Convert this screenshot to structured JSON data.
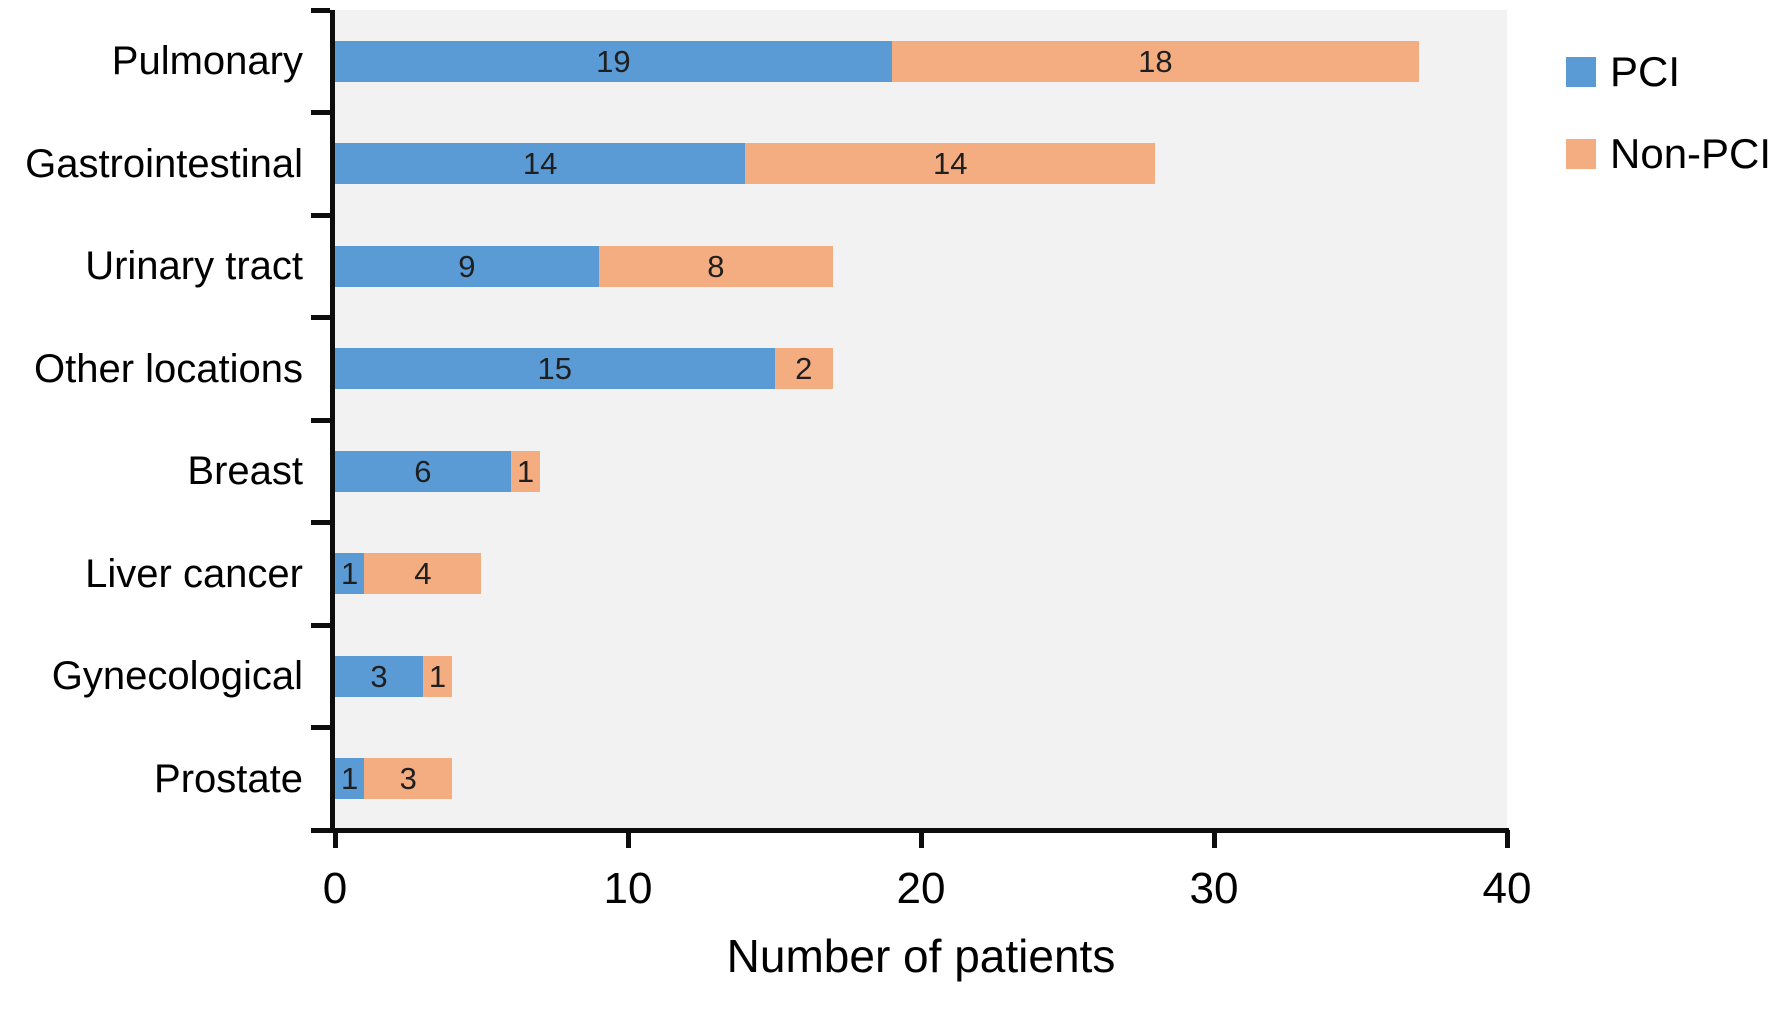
{
  "chart_data": {
    "type": "bar",
    "orientation": "horizontal",
    "stacked": true,
    "title": "",
    "xlabel": "Number of patients",
    "ylabel": "",
    "categories": [
      "Pulmonary",
      "Gastrointestinal",
      "Urinary tract",
      "Other locations",
      "Breast",
      "Liver cancer",
      "Gynecological",
      "Prostate"
    ],
    "series": [
      {
        "name": "PCI",
        "color": "#5B9BD5",
        "values": [
          19,
          14,
          9,
          15,
          6,
          1,
          3,
          1
        ]
      },
      {
        "name": "Non-PCI",
        "color": "#F4AD80",
        "values": [
          18,
          14,
          8,
          2,
          1,
          4,
          1,
          3
        ]
      }
    ],
    "value_labels_shown": true,
    "xlim": [
      0,
      40
    ],
    "x_ticks": [
      0,
      10,
      20,
      30,
      40
    ],
    "grid": false,
    "legend_position": "top-right",
    "plot_background_color": "#F2F2F2",
    "axis_color": "#0d0d0d"
  }
}
